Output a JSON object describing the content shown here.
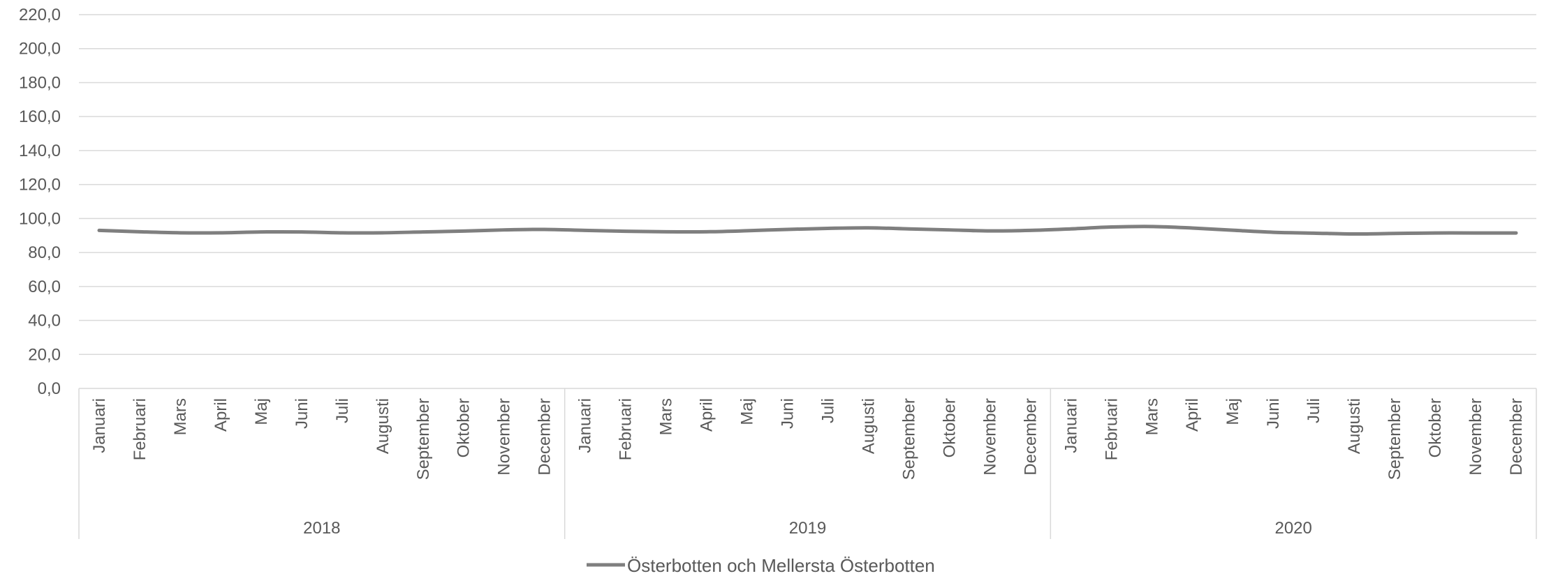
{
  "chart_data": {
    "type": "line",
    "title": "",
    "xlabel": "",
    "ylabel": "",
    "ylim": [
      0,
      220
    ],
    "y_ticks": [
      "0,0",
      "20,0",
      "40,0",
      "60,0",
      "80,0",
      "100,0",
      "120,0",
      "140,0",
      "160,0",
      "180,0",
      "200,0",
      "220,0"
    ],
    "y_tick_values": [
      0,
      20,
      40,
      60,
      80,
      100,
      120,
      140,
      160,
      180,
      200,
      220
    ],
    "grid": "horizontal",
    "legend_position": "bottom",
    "categories": [
      "Januari",
      "Februari",
      "Mars",
      "April",
      "Maj",
      "Juni",
      "Juli",
      "Augusti",
      "September",
      "Oktober",
      "November",
      "December",
      "Januari",
      "Februari",
      "Mars",
      "April",
      "Maj",
      "Juni",
      "Juli",
      "Augusti",
      "September",
      "Oktober",
      "November",
      "December",
      "Januari",
      "Februari",
      "Mars",
      "April",
      "Maj",
      "Juni",
      "Juli",
      "Augusti",
      "September",
      "Oktober",
      "November",
      "December"
    ],
    "groups": [
      {
        "label": "2018",
        "count": 12
      },
      {
        "label": "2019",
        "count": 12
      },
      {
        "label": "2020",
        "count": 12
      }
    ],
    "series": [
      {
        "name": "Österbotten och Mellersta Österbotten",
        "color": "#7f7f7f",
        "values": [
          93.0,
          92.2,
          91.6,
          91.6,
          92.1,
          92.1,
          91.6,
          91.6,
          92.1,
          92.6,
          93.3,
          93.6,
          93.0,
          92.5,
          92.2,
          92.2,
          92.8,
          93.6,
          94.2,
          94.5,
          93.9,
          93.3,
          92.7,
          93.0,
          93.9,
          95.0,
          95.3,
          94.4,
          93.1,
          91.9,
          91.4,
          90.9,
          91.2,
          91.5,
          91.5,
          91.5
        ]
      }
    ]
  }
}
